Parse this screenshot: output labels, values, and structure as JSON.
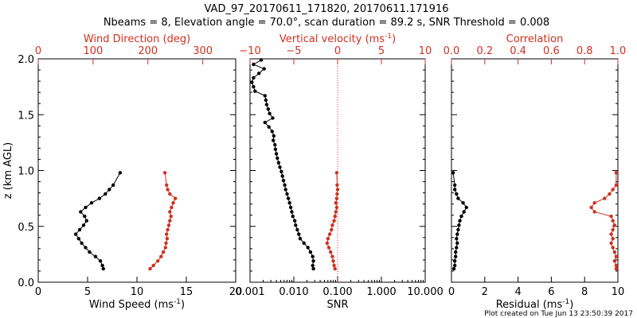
{
  "title_line1": "VAD_97_20170611_171820, 20170611.171916",
  "title_line2": "Nbeams = 8, Elevation angle = 70.0°, scan duration = 89.2 s, SNR Threshold = 0.008",
  "footer": "Plot created on Tue Jun 13 23:50:39 2017",
  "colors": {
    "primary": "#000000",
    "secondary": "#d03020"
  },
  "chart_data": [
    {
      "type": "line",
      "ylabel": "z (km AGL)",
      "ylim": [
        0.0,
        2.0
      ],
      "yticks": [
        "0.0",
        "0.5",
        "1.0",
        "1.5",
        "2.0"
      ],
      "bottom_axis": {
        "label_text": "Wind Speed (ms",
        "label_sup": "-1",
        "label_end": ")",
        "ticks": [
          "0",
          "5",
          "10",
          "15",
          "20"
        ],
        "lim": [
          0,
          20
        ]
      },
      "top_axis": {
        "label_text": "Wind Direction (deg)",
        "ticks": [
          "0",
          "100",
          "200",
          "300"
        ],
        "lim": [
          0,
          360
        ]
      },
      "series": [
        {
          "axis": "bottom",
          "color": "#000000",
          "y": [
            0.12,
            0.15,
            0.19,
            0.23,
            0.27,
            0.31,
            0.35,
            0.39,
            0.43,
            0.47,
            0.51,
            0.55,
            0.59,
            0.63,
            0.67,
            0.71,
            0.75,
            0.79,
            0.83,
            0.87,
            0.98
          ],
          "x": [
            6.6,
            6.5,
            6.3,
            5.8,
            5.2,
            4.8,
            4.4,
            4.1,
            3.8,
            4.2,
            4.6,
            4.9,
            4.7,
            4.3,
            4.8,
            5.4,
            6.2,
            6.8,
            7.2,
            7.6,
            8.3
          ]
        },
        {
          "axis": "top",
          "color": "#d03020",
          "y": [
            0.12,
            0.15,
            0.19,
            0.23,
            0.27,
            0.31,
            0.35,
            0.39,
            0.43,
            0.47,
            0.51,
            0.55,
            0.59,
            0.63,
            0.67,
            0.71,
            0.75,
            0.79,
            0.83,
            0.87,
            0.98
          ],
          "x": [
            204,
            210,
            218,
            224,
            228,
            232,
            233,
            235,
            234,
            236,
            238,
            240,
            242,
            240,
            243,
            246,
            250,
            240,
            236,
            234,
            231
          ]
        }
      ]
    },
    {
      "type": "line",
      "ylim": [
        0.0,
        2.0
      ],
      "xscale": "log",
      "bottom_axis": {
        "label_text": "SNR",
        "ticks": [
          "0.001",
          "0.010",
          "0.100",
          "1.000",
          "10.000"
        ],
        "lim": [
          0.001,
          10
        ]
      },
      "top_axis": {
        "label_text": "Vertical velocity (ms",
        "label_sup": "-1",
        "label_end": ")",
        "ticks": [
          "−10",
          "−5",
          "0",
          "5",
          "10"
        ],
        "lim": [
          -10,
          10
        ]
      },
      "zero_line": {
        "axis": "top",
        "value": 0
      },
      "series": [
        {
          "axis": "bottom",
          "color": "#000000",
          "y": [
            0.12,
            0.15,
            0.19,
            0.23,
            0.27,
            0.31,
            0.35,
            0.39,
            0.43,
            0.47,
            0.51,
            0.55,
            0.59,
            0.63,
            0.67,
            0.71,
            0.75,
            0.79,
            0.83,
            0.87,
            0.91,
            0.95,
            0.99,
            1.03,
            1.07,
            1.11,
            1.15,
            1.19,
            1.23,
            1.27,
            1.31,
            1.35,
            1.39,
            1.43,
            1.47,
            1.51,
            1.55,
            1.59,
            1.63,
            1.67,
            1.71,
            1.75,
            1.79,
            1.83,
            1.87,
            1.91,
            1.95,
            1.99
          ],
          "x": [
            0.028,
            0.027,
            0.028,
            0.027,
            0.024,
            0.021,
            0.017,
            0.014,
            0.013,
            0.012,
            0.011,
            0.0105,
            0.0095,
            0.009,
            0.0085,
            0.008,
            0.0075,
            0.007,
            0.0065,
            0.0062,
            0.0058,
            0.0055,
            0.0052,
            0.0048,
            0.0045,
            0.0042,
            0.004,
            0.0038,
            0.0037,
            0.0034,
            0.0035,
            0.0032,
            0.0027,
            0.0022,
            0.0033,
            0.0028,
            0.0026,
            0.0024,
            0.0023,
            0.0022,
            0.0013,
            0.0012,
            0.0011,
            0.0012,
            0.0016,
            0.0021,
            0.0012,
            0.0018
          ]
        },
        {
          "axis": "top",
          "color": "#d03020",
          "y": [
            0.12,
            0.15,
            0.19,
            0.23,
            0.27,
            0.31,
            0.35,
            0.39,
            0.43,
            0.47,
            0.51,
            0.55,
            0.59,
            0.63,
            0.67,
            0.71,
            0.75,
            0.79,
            0.83,
            0.87,
            0.98
          ],
          "x": [
            -0.3,
            -0.4,
            -0.5,
            -0.6,
            -0.8,
            -1.0,
            -1.2,
            -1.1,
            -0.9,
            -0.7,
            -0.6,
            -0.4,
            -0.3,
            -0.2,
            -0.1,
            -0.2,
            -0.1,
            -0.05,
            0.0,
            -0.05,
            -0.1
          ]
        }
      ]
    },
    {
      "type": "line",
      "ylim": [
        0.0,
        2.0
      ],
      "bottom_axis": {
        "label_text": "Residual (ms",
        "label_sup": "-1",
        "label_end": ")",
        "ticks": [
          "0",
          "2",
          "4",
          "6",
          "8",
          "10"
        ],
        "lim": [
          0,
          10
        ]
      },
      "top_axis": {
        "label_text": "Correlation",
        "ticks": [
          "0.0",
          "0.2",
          "0.4",
          "0.6",
          "0.8",
          "1.0"
        ],
        "lim": [
          0,
          1
        ]
      },
      "series": [
        {
          "axis": "bottom",
          "color": "#000000",
          "y": [
            0.12,
            0.15,
            0.19,
            0.23,
            0.27,
            0.31,
            0.35,
            0.39,
            0.43,
            0.47,
            0.51,
            0.55,
            0.59,
            0.63,
            0.67,
            0.71,
            0.75,
            0.79,
            0.83,
            0.87,
            0.98
          ],
          "x": [
            0.15,
            0.2,
            0.2,
            0.25,
            0.25,
            0.3,
            0.35,
            0.3,
            0.35,
            0.4,
            0.45,
            0.5,
            0.6,
            0.75,
            0.9,
            0.7,
            0.4,
            0.3,
            0.2,
            0.2,
            0.1
          ]
        },
        {
          "axis": "top",
          "color": "#d03020",
          "y": [
            0.12,
            0.15,
            0.19,
            0.23,
            0.27,
            0.31,
            0.35,
            0.39,
            0.43,
            0.47,
            0.51,
            0.55,
            0.59,
            0.63,
            0.67,
            0.71,
            0.75,
            0.79,
            0.83,
            0.87,
            0.98
          ],
          "x": [
            0.99,
            0.99,
            0.98,
            0.99,
            0.98,
            0.97,
            0.96,
            0.97,
            0.96,
            0.97,
            0.98,
            0.97,
            0.96,
            0.86,
            0.84,
            0.86,
            0.92,
            0.95,
            0.97,
            0.99,
            0.99
          ]
        }
      ]
    }
  ]
}
